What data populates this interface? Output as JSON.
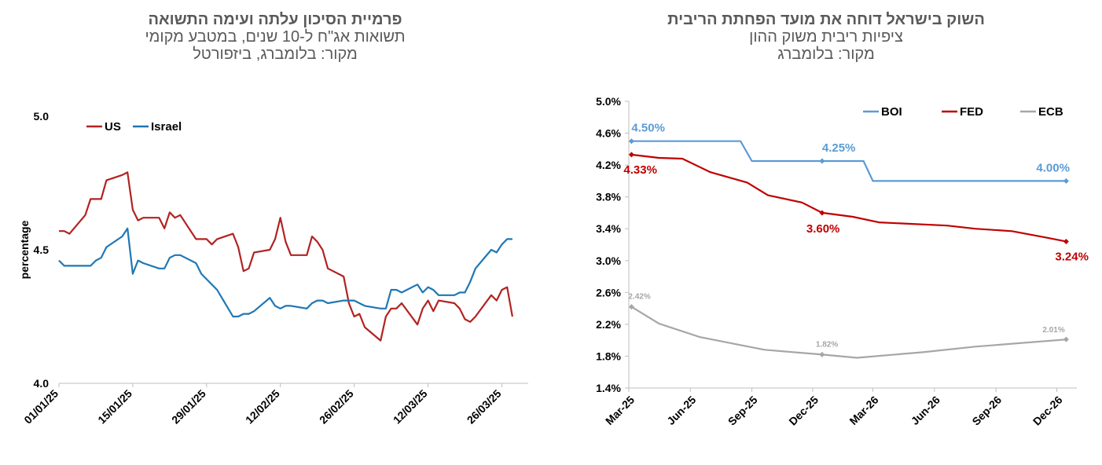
{
  "left": {
    "title": "פרמיית הסיכון עלתה ועימה התשואה",
    "subtitle": "תשואות אג\"ח ל-10 שנים, במטבע מקומי",
    "source": "מקור: בלומברג, ביזפורטל"
  },
  "right": {
    "title": "השוק בישראל דוחה את מועד הפחתת הריבית",
    "subtitle": "ציפיות ריבית  משוק ההון",
    "source": "מקור: בלומברג"
  },
  "chart_data": [
    {
      "type": "line",
      "title": "פרמיית הסיכון עלתה ועימה התשואה",
      "ylabel": "percentage",
      "ylim": [
        4.0,
        5.0
      ],
      "yticks": [
        "4.0",
        "4.5",
        "5.0"
      ],
      "xlim": [
        "2025-01-01",
        "2025-03-31"
      ],
      "xticks": [
        "01/01/25",
        "15/01/25",
        "29/01/25",
        "12/02/25",
        "26/02/25",
        "12/03/25",
        "26/03/25"
      ],
      "legend_position": "top-left",
      "grid": false,
      "colors": {
        "US": "#b22222",
        "Israel": "#1f77b4"
      },
      "series": [
        {
          "name": "US",
          "x": [
            "2025-01-01",
            "2025-01-02",
            "2025-01-03",
            "2025-01-06",
            "2025-01-07",
            "2025-01-08",
            "2025-01-09",
            "2025-01-10",
            "2025-01-13",
            "2025-01-14",
            "2025-01-15",
            "2025-01-16",
            "2025-01-17",
            "2025-01-20",
            "2025-01-21",
            "2025-01-22",
            "2025-01-23",
            "2025-01-24",
            "2025-01-27",
            "2025-01-28",
            "2025-01-29",
            "2025-01-30",
            "2025-01-31",
            "2025-02-03",
            "2025-02-04",
            "2025-02-05",
            "2025-02-06",
            "2025-02-07",
            "2025-02-10",
            "2025-02-11",
            "2025-02-12",
            "2025-02-13",
            "2025-02-14",
            "2025-02-17",
            "2025-02-18",
            "2025-02-19",
            "2025-02-20",
            "2025-02-21",
            "2025-02-24",
            "2025-02-25",
            "2025-02-26",
            "2025-02-27",
            "2025-02-28",
            "2025-03-03",
            "2025-03-04",
            "2025-03-05",
            "2025-03-06",
            "2025-03-07",
            "2025-03-10",
            "2025-03-11",
            "2025-03-12",
            "2025-03-13",
            "2025-03-14",
            "2025-03-17",
            "2025-03-18",
            "2025-03-19",
            "2025-03-20",
            "2025-03-21",
            "2025-03-24",
            "2025-03-25",
            "2025-03-26",
            "2025-03-27",
            "2025-03-28"
          ],
          "values": [
            4.57,
            4.57,
            4.56,
            4.63,
            4.69,
            4.69,
            4.69,
            4.76,
            4.78,
            4.79,
            4.65,
            4.61,
            4.62,
            4.62,
            4.58,
            4.64,
            4.62,
            4.63,
            4.54,
            4.54,
            4.54,
            4.52,
            4.54,
            4.56,
            4.51,
            4.42,
            4.43,
            4.49,
            4.5,
            4.54,
            4.62,
            4.53,
            4.48,
            4.48,
            4.55,
            4.53,
            4.5,
            4.43,
            4.4,
            4.3,
            4.25,
            4.26,
            4.21,
            4.16,
            4.25,
            4.28,
            4.28,
            4.3,
            4.22,
            4.28,
            4.31,
            4.27,
            4.31,
            4.3,
            4.28,
            4.24,
            4.23,
            4.25,
            4.33,
            4.31,
            4.35,
            4.36,
            4.25
          ]
        },
        {
          "name": "Israel",
          "x": [
            "2025-01-01",
            "2025-01-02",
            "2025-01-03",
            "2025-01-06",
            "2025-01-07",
            "2025-01-08",
            "2025-01-09",
            "2025-01-10",
            "2025-01-13",
            "2025-01-14",
            "2025-01-15",
            "2025-01-16",
            "2025-01-17",
            "2025-01-20",
            "2025-01-21",
            "2025-01-22",
            "2025-01-23",
            "2025-01-24",
            "2025-01-27",
            "2025-01-28",
            "2025-01-29",
            "2025-01-30",
            "2025-01-31",
            "2025-02-03",
            "2025-02-04",
            "2025-02-05",
            "2025-02-06",
            "2025-02-07",
            "2025-02-10",
            "2025-02-11",
            "2025-02-12",
            "2025-02-13",
            "2025-02-14",
            "2025-02-17",
            "2025-02-18",
            "2025-02-19",
            "2025-02-20",
            "2025-02-21",
            "2025-02-24",
            "2025-02-25",
            "2025-02-26",
            "2025-02-27",
            "2025-02-28",
            "2025-03-03",
            "2025-03-04",
            "2025-03-05",
            "2025-03-06",
            "2025-03-07",
            "2025-03-10",
            "2025-03-11",
            "2025-03-12",
            "2025-03-13",
            "2025-03-14",
            "2025-03-17",
            "2025-03-18",
            "2025-03-19",
            "2025-03-20",
            "2025-03-21",
            "2025-03-24",
            "2025-03-25",
            "2025-03-26",
            "2025-03-27",
            "2025-03-28"
          ],
          "values": [
            4.46,
            4.44,
            4.44,
            4.44,
            4.44,
            4.46,
            4.47,
            4.51,
            4.55,
            4.58,
            4.41,
            4.46,
            4.45,
            4.43,
            4.43,
            4.47,
            4.48,
            4.48,
            4.45,
            4.41,
            4.39,
            4.37,
            4.35,
            4.25,
            4.25,
            4.26,
            4.26,
            4.27,
            4.32,
            4.29,
            4.28,
            4.29,
            4.29,
            4.28,
            4.3,
            4.31,
            4.31,
            4.3,
            4.31,
            4.31,
            4.31,
            4.3,
            4.29,
            4.28,
            4.28,
            4.35,
            4.35,
            4.34,
            4.37,
            4.34,
            4.36,
            4.35,
            4.33,
            4.33,
            4.34,
            4.34,
            4.38,
            4.43,
            4.5,
            4.49,
            4.52,
            4.54,
            4.54
          ]
        }
      ]
    },
    {
      "type": "line",
      "title": "השוק בישראל דוחה את מועד הפחתת הריבית",
      "ylim": [
        1.4,
        5.0
      ],
      "yticks": [
        "1.4%",
        "1.8%",
        "2.2%",
        "2.6%",
        "3.0%",
        "3.4%",
        "3.8%",
        "4.2%",
        "4.6%",
        "5.0%"
      ],
      "xlim": [
        "2025-03-01",
        "2026-12-31"
      ],
      "xticks": [
        "Mar-25",
        "Jun-25",
        "Sep-25",
        "Dec-25",
        "Mar-26",
        "Jun-26",
        "Sep-26",
        "Dec-26"
      ],
      "legend_position": "top-right",
      "grid": false,
      "colors": {
        "BOI": "#5b9bd5",
        "FED": "#c00000",
        "ECB": "#a6a6a6"
      },
      "series": [
        {
          "name": "BOI",
          "x": [
            "2025-03-05",
            "2025-08-15",
            "2025-09-01",
            "2025-12-15",
            "2026-02-15",
            "2026-03-01",
            "2026-12-15"
          ],
          "values": [
            4.5,
            4.5,
            4.25,
            4.25,
            4.25,
            4.0,
            4.0
          ],
          "labels": [
            {
              "x": "2025-03-05",
              "text": "4.50%"
            },
            {
              "x": "2025-12-15",
              "text": "4.25%"
            },
            {
              "x": "2026-12-15",
              "text": "4.00%"
            }
          ]
        },
        {
          "name": "FED",
          "x": [
            "2025-03-05",
            "2025-04-15",
            "2025-05-20",
            "2025-07-01",
            "2025-08-25",
            "2025-09-25",
            "2025-11-15",
            "2025-12-15",
            "2026-01-30",
            "2026-03-10",
            "2026-06-20",
            "2026-08-01",
            "2026-09-25",
            "2026-11-15",
            "2026-12-15"
          ],
          "values": [
            4.33,
            4.29,
            4.28,
            4.11,
            3.98,
            3.82,
            3.73,
            3.6,
            3.55,
            3.48,
            3.44,
            3.4,
            3.37,
            3.29,
            3.24
          ],
          "labels": [
            {
              "x": "2025-03-05",
              "text": "4.33%"
            },
            {
              "x": "2025-12-15",
              "text": "3.60%"
            },
            {
              "x": "2026-12-15",
              "text": "3.24%"
            }
          ]
        },
        {
          "name": "ECB",
          "x": [
            "2025-03-05",
            "2025-04-15",
            "2025-06-15",
            "2025-08-15",
            "2025-09-20",
            "2025-12-15",
            "2026-02-05",
            "2026-05-15",
            "2026-08-01",
            "2026-12-15"
          ],
          "values": [
            2.42,
            2.21,
            2.04,
            1.94,
            1.88,
            1.82,
            1.78,
            1.85,
            1.92,
            2.01
          ],
          "labels": [
            {
              "x": "2025-03-05",
              "text": "2.42%"
            },
            {
              "x": "2025-12-15",
              "text": "1.82%"
            },
            {
              "x": "2026-12-15",
              "text": "2.01%"
            }
          ]
        }
      ]
    }
  ]
}
